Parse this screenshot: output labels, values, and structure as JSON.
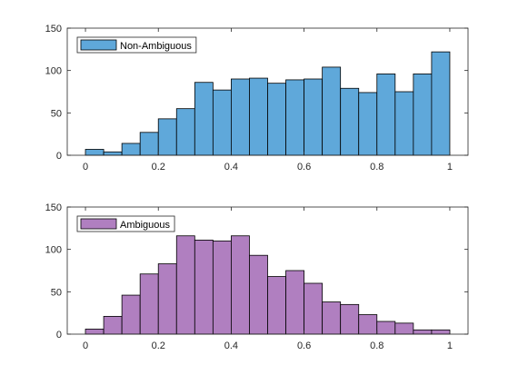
{
  "chart_data": [
    {
      "type": "bar",
      "subtype": "histogram",
      "bin_edges": [
        0,
        0.05,
        0.1,
        0.15,
        0.2,
        0.25,
        0.3,
        0.35,
        0.4,
        0.45,
        0.5,
        0.55,
        0.6,
        0.65,
        0.7,
        0.75,
        0.8,
        0.85,
        0.9,
        0.95,
        1.0
      ],
      "values": [
        7,
        4,
        14,
        27,
        43,
        55,
        86,
        77,
        90,
        91,
        85,
        89,
        90,
        104,
        79,
        74,
        96,
        75,
        96,
        122
      ],
      "series": [
        {
          "name": "Non-Ambiguous",
          "color": "#5FA8DA"
        }
      ],
      "xlim": [
        -0.05,
        1.05
      ],
      "ylim": [
        0,
        150
      ],
      "xticks": [
        0,
        0.2,
        0.4,
        0.6,
        0.8,
        1
      ],
      "xtick_labels": [
        "0",
        "0.2",
        "0.4",
        "0.6",
        "0.8",
        "1"
      ],
      "yticks": [
        0,
        50,
        100,
        150
      ],
      "ytick_labels": [
        "0",
        "50",
        "100",
        "150"
      ],
      "legend": "top-left",
      "grid": false
    },
    {
      "type": "bar",
      "subtype": "histogram",
      "bin_edges": [
        0,
        0.05,
        0.1,
        0.15,
        0.2,
        0.25,
        0.3,
        0.35,
        0.4,
        0.45,
        0.5,
        0.55,
        0.6,
        0.65,
        0.7,
        0.75,
        0.8,
        0.85,
        0.9,
        0.95,
        1.0
      ],
      "values": [
        6,
        21,
        46,
        71,
        83,
        116,
        111,
        110,
        116,
        93,
        68,
        75,
        60,
        38,
        35,
        23,
        15,
        13,
        5,
        5
      ],
      "series": [
        {
          "name": "Ambiguous",
          "color": "#B07FC0"
        }
      ],
      "xlim": [
        -0.05,
        1.05
      ],
      "ylim": [
        0,
        150
      ],
      "xticks": [
        0,
        0.2,
        0.4,
        0.6,
        0.8,
        1
      ],
      "xtick_labels": [
        "0",
        "0.2",
        "0.4",
        "0.6",
        "0.8",
        "1"
      ],
      "yticks": [
        0,
        50,
        100,
        150
      ],
      "ytick_labels": [
        "0",
        "50",
        "100",
        "150"
      ],
      "legend": "top-left",
      "grid": false
    }
  ]
}
